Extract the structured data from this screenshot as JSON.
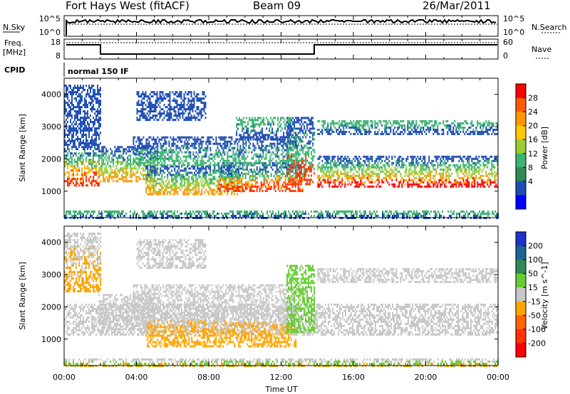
{
  "header": {
    "station": "Fort Hays West (fitACF)",
    "beam": "Beam 09",
    "date": "26/Mar/2011"
  },
  "nsky_panel": {
    "label": "N.Sky",
    "left_ticks": [
      "10^5",
      "10^0"
    ],
    "right_ticks": [
      "10^5",
      "10^0"
    ],
    "right_label": "N.Search"
  },
  "freq_panel": {
    "label_line1": "Freq.",
    "label_line2": "[MHz]",
    "left_ticks": [
      "18",
      "8"
    ],
    "right_ticks": [
      "60",
      "0"
    ],
    "right_label": "Nave"
  },
  "cpid": {
    "label": "CPID",
    "value": "normal 150 IF"
  },
  "x_axis": {
    "label": "Time UT",
    "ticks": [
      "00:00",
      "04:00",
      "08:00",
      "12:00",
      "16:00",
      "20:00",
      "00:00"
    ]
  },
  "chart_data": [
    {
      "type": "heatmap",
      "name": "Power",
      "ylabel": "Slant Range [km]",
      "yticks": [
        "4000",
        "3000",
        "2000",
        "1000"
      ],
      "ylim": [
        180,
        4500
      ],
      "xlim_hours": [
        0,
        24
      ],
      "colorbar_label": "Power [dB]",
      "colorbar_ticks": [
        "28",
        "24",
        "20",
        "16",
        "12",
        "8",
        "4"
      ],
      "colorbar_colors": [
        "#ff0000",
        "#ff5a00",
        "#ff9600",
        "#ffc800",
        "#9acd32",
        "#3cb371",
        "#2e8b57",
        "#1e4db4",
        "#0000ff"
      ],
      "bands": [
        {
          "t0": 0.0,
          "t1": 1.9,
          "r0": 1150,
          "r1": 2600,
          "colors": [
            "#ff3300",
            "#ffb400",
            "#3cb371",
            "#1e4db4"
          ]
        },
        {
          "t0": 1.9,
          "t1": 5.2,
          "r0": 1300,
          "r1": 2400,
          "colors": [
            "#ff9600",
            "#9acd32",
            "#3cb371",
            "#1e4db4"
          ]
        },
        {
          "t0": 4.5,
          "t1": 9.8,
          "r0": 900,
          "r1": 1800,
          "colors": [
            "#ff9600",
            "#9acd32",
            "#3cb371",
            "#1e4db4"
          ]
        },
        {
          "t0": 8.5,
          "t1": 13.2,
          "r0": 1000,
          "r1": 1900,
          "colors": [
            "#ff3300",
            "#ff9600",
            "#3cb371",
            "#1e4db4"
          ]
        },
        {
          "t0": 3.8,
          "t1": 12.8,
          "r0": 1800,
          "r1": 2700,
          "colors": [
            "#3cb371",
            "#1e4db4"
          ]
        },
        {
          "t0": 14.0,
          "t1": 24.0,
          "r0": 1150,
          "r1": 2100,
          "colors": [
            "#ff0000",
            "#ff9600",
            "#9acd32",
            "#3cb371",
            "#1e4db4"
          ]
        },
        {
          "t0": 14.0,
          "t1": 24.0,
          "r0": 2800,
          "r1": 3200,
          "colors": [
            "#1e4db4",
            "#3cb371"
          ]
        },
        {
          "t0": 0.0,
          "t1": 2.0,
          "r0": 2500,
          "r1": 4300,
          "colors": [
            "#1e4db4"
          ]
        },
        {
          "t0": 4.0,
          "t1": 7.8,
          "r0": 3200,
          "r1": 4100,
          "colors": [
            "#1e4db4"
          ]
        },
        {
          "t0": 9.5,
          "t1": 12.5,
          "r0": 2600,
          "r1": 3300,
          "colors": [
            "#1e4db4",
            "#3cb371"
          ]
        },
        {
          "t0": 12.3,
          "t1": 13.8,
          "r0": 1200,
          "r1": 3300,
          "colors": [
            "#ff3300",
            "#3cb371",
            "#1e4db4"
          ]
        },
        {
          "t0": 0.0,
          "t1": 24.0,
          "r0": 180,
          "r1": 400,
          "colors": [
            "#1e4db4",
            "#3cb371"
          ]
        }
      ]
    },
    {
      "type": "heatmap",
      "name": "Velocity",
      "ylabel": "Slant Range [km]",
      "yticks": [
        "4000",
        "3000",
        "2000",
        "1000"
      ],
      "ylim": [
        180,
        4500
      ],
      "xlim_hours": [
        0,
        24
      ],
      "colorbar_label": "Velocity [m s^-1]",
      "colorbar_ticks": [
        "200",
        "100",
        "50",
        "15",
        "-15",
        "-50",
        "-100",
        "-200"
      ],
      "colorbar_colors": [
        "#1e32c8",
        "#1e6496",
        "#2e8b57",
        "#66cc33",
        "#c8c8c8",
        "#ffa500",
        "#ff6400",
        "#ff3200",
        "#ff0000"
      ],
      "bands": [
        {
          "t0": 0.0,
          "t1": 24.0,
          "r0": 1150,
          "r1": 2100,
          "colors": [
            "#c8c8c8"
          ]
        },
        {
          "t0": 1.9,
          "t1": 5.0,
          "r0": 1300,
          "r1": 2400,
          "colors": [
            "#c8c8c8"
          ]
        },
        {
          "t0": 3.8,
          "t1": 12.8,
          "r0": 1800,
          "r1": 2700,
          "colors": [
            "#c8c8c8"
          ]
        },
        {
          "t0": 4.5,
          "t1": 12.8,
          "r0": 800,
          "r1": 1800,
          "colors": [
            "#ffa500",
            "#ffa500",
            "#c8c8c8"
          ]
        },
        {
          "t0": 12.3,
          "t1": 13.8,
          "r0": 1200,
          "r1": 3300,
          "colors": [
            "#66cc33"
          ]
        },
        {
          "t0": 14.0,
          "t1": 24.0,
          "r0": 2800,
          "r1": 3200,
          "colors": [
            "#c8c8c8"
          ]
        },
        {
          "t0": 0.0,
          "t1": 2.0,
          "r0": 2500,
          "r1": 4300,
          "colors": [
            "#ffa500",
            "#c8c8c8"
          ]
        },
        {
          "t0": 4.0,
          "t1": 7.8,
          "r0": 3200,
          "r1": 4100,
          "colors": [
            "#c8c8c8"
          ]
        },
        {
          "t0": 0.0,
          "t1": 24.0,
          "r0": 180,
          "r1": 400,
          "colors": [
            "#ffa500",
            "#66cc33",
            "#c8c8c8"
          ]
        }
      ]
    }
  ]
}
